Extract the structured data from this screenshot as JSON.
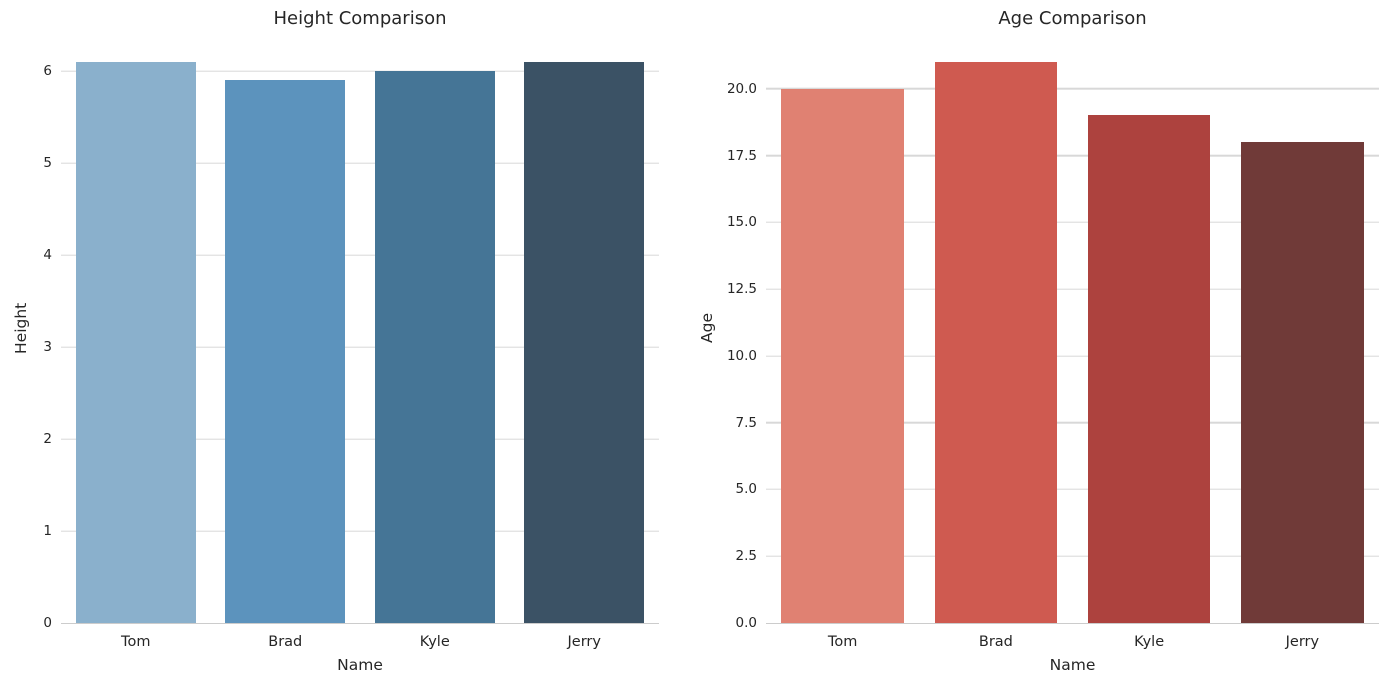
{
  "figure": {
    "background": "#ffffff",
    "text_color": "#262626",
    "grid_color": "#d8d8d8",
    "spine_color": "#cccccc"
  },
  "chart_data": [
    {
      "type": "bar",
      "title": "Height Comparison",
      "xlabel": "Name",
      "ylabel": "Height",
      "categories": [
        "Tom",
        "Brad",
        "Kyle",
        "Jerry"
      ],
      "values": [
        6.1,
        5.9,
        6.0,
        6.1
      ],
      "ylim": [
        0,
        6.405
      ],
      "ytick_values": [
        0,
        1,
        2,
        3,
        4,
        5,
        6
      ],
      "ytick_labels": [
        "0",
        "1",
        "2",
        "3",
        "4",
        "5",
        "6"
      ],
      "bar_colors": [
        "#8ab0cc",
        "#5c93bd",
        "#457596",
        "#3b5265"
      ],
      "grid": true,
      "legend": "none"
    },
    {
      "type": "bar",
      "title": "Age Comparison",
      "xlabel": "Name",
      "ylabel": "Age",
      "categories": [
        "Tom",
        "Brad",
        "Kyle",
        "Jerry"
      ],
      "values": [
        20,
        21,
        19,
        18
      ],
      "ylim": [
        0,
        22.05
      ],
      "ytick_values": [
        0,
        2.5,
        5,
        7.5,
        10,
        12.5,
        15,
        17.5,
        20
      ],
      "ytick_labels": [
        "0.0",
        "2.5",
        "5.0",
        "7.5",
        "10.0",
        "12.5",
        "15.0",
        "17.5",
        "20.0"
      ],
      "bar_colors": [
        "#e08172",
        "#cf5a50",
        "#ad423e",
        "#703a38"
      ],
      "grid": true,
      "legend": "none"
    }
  ]
}
